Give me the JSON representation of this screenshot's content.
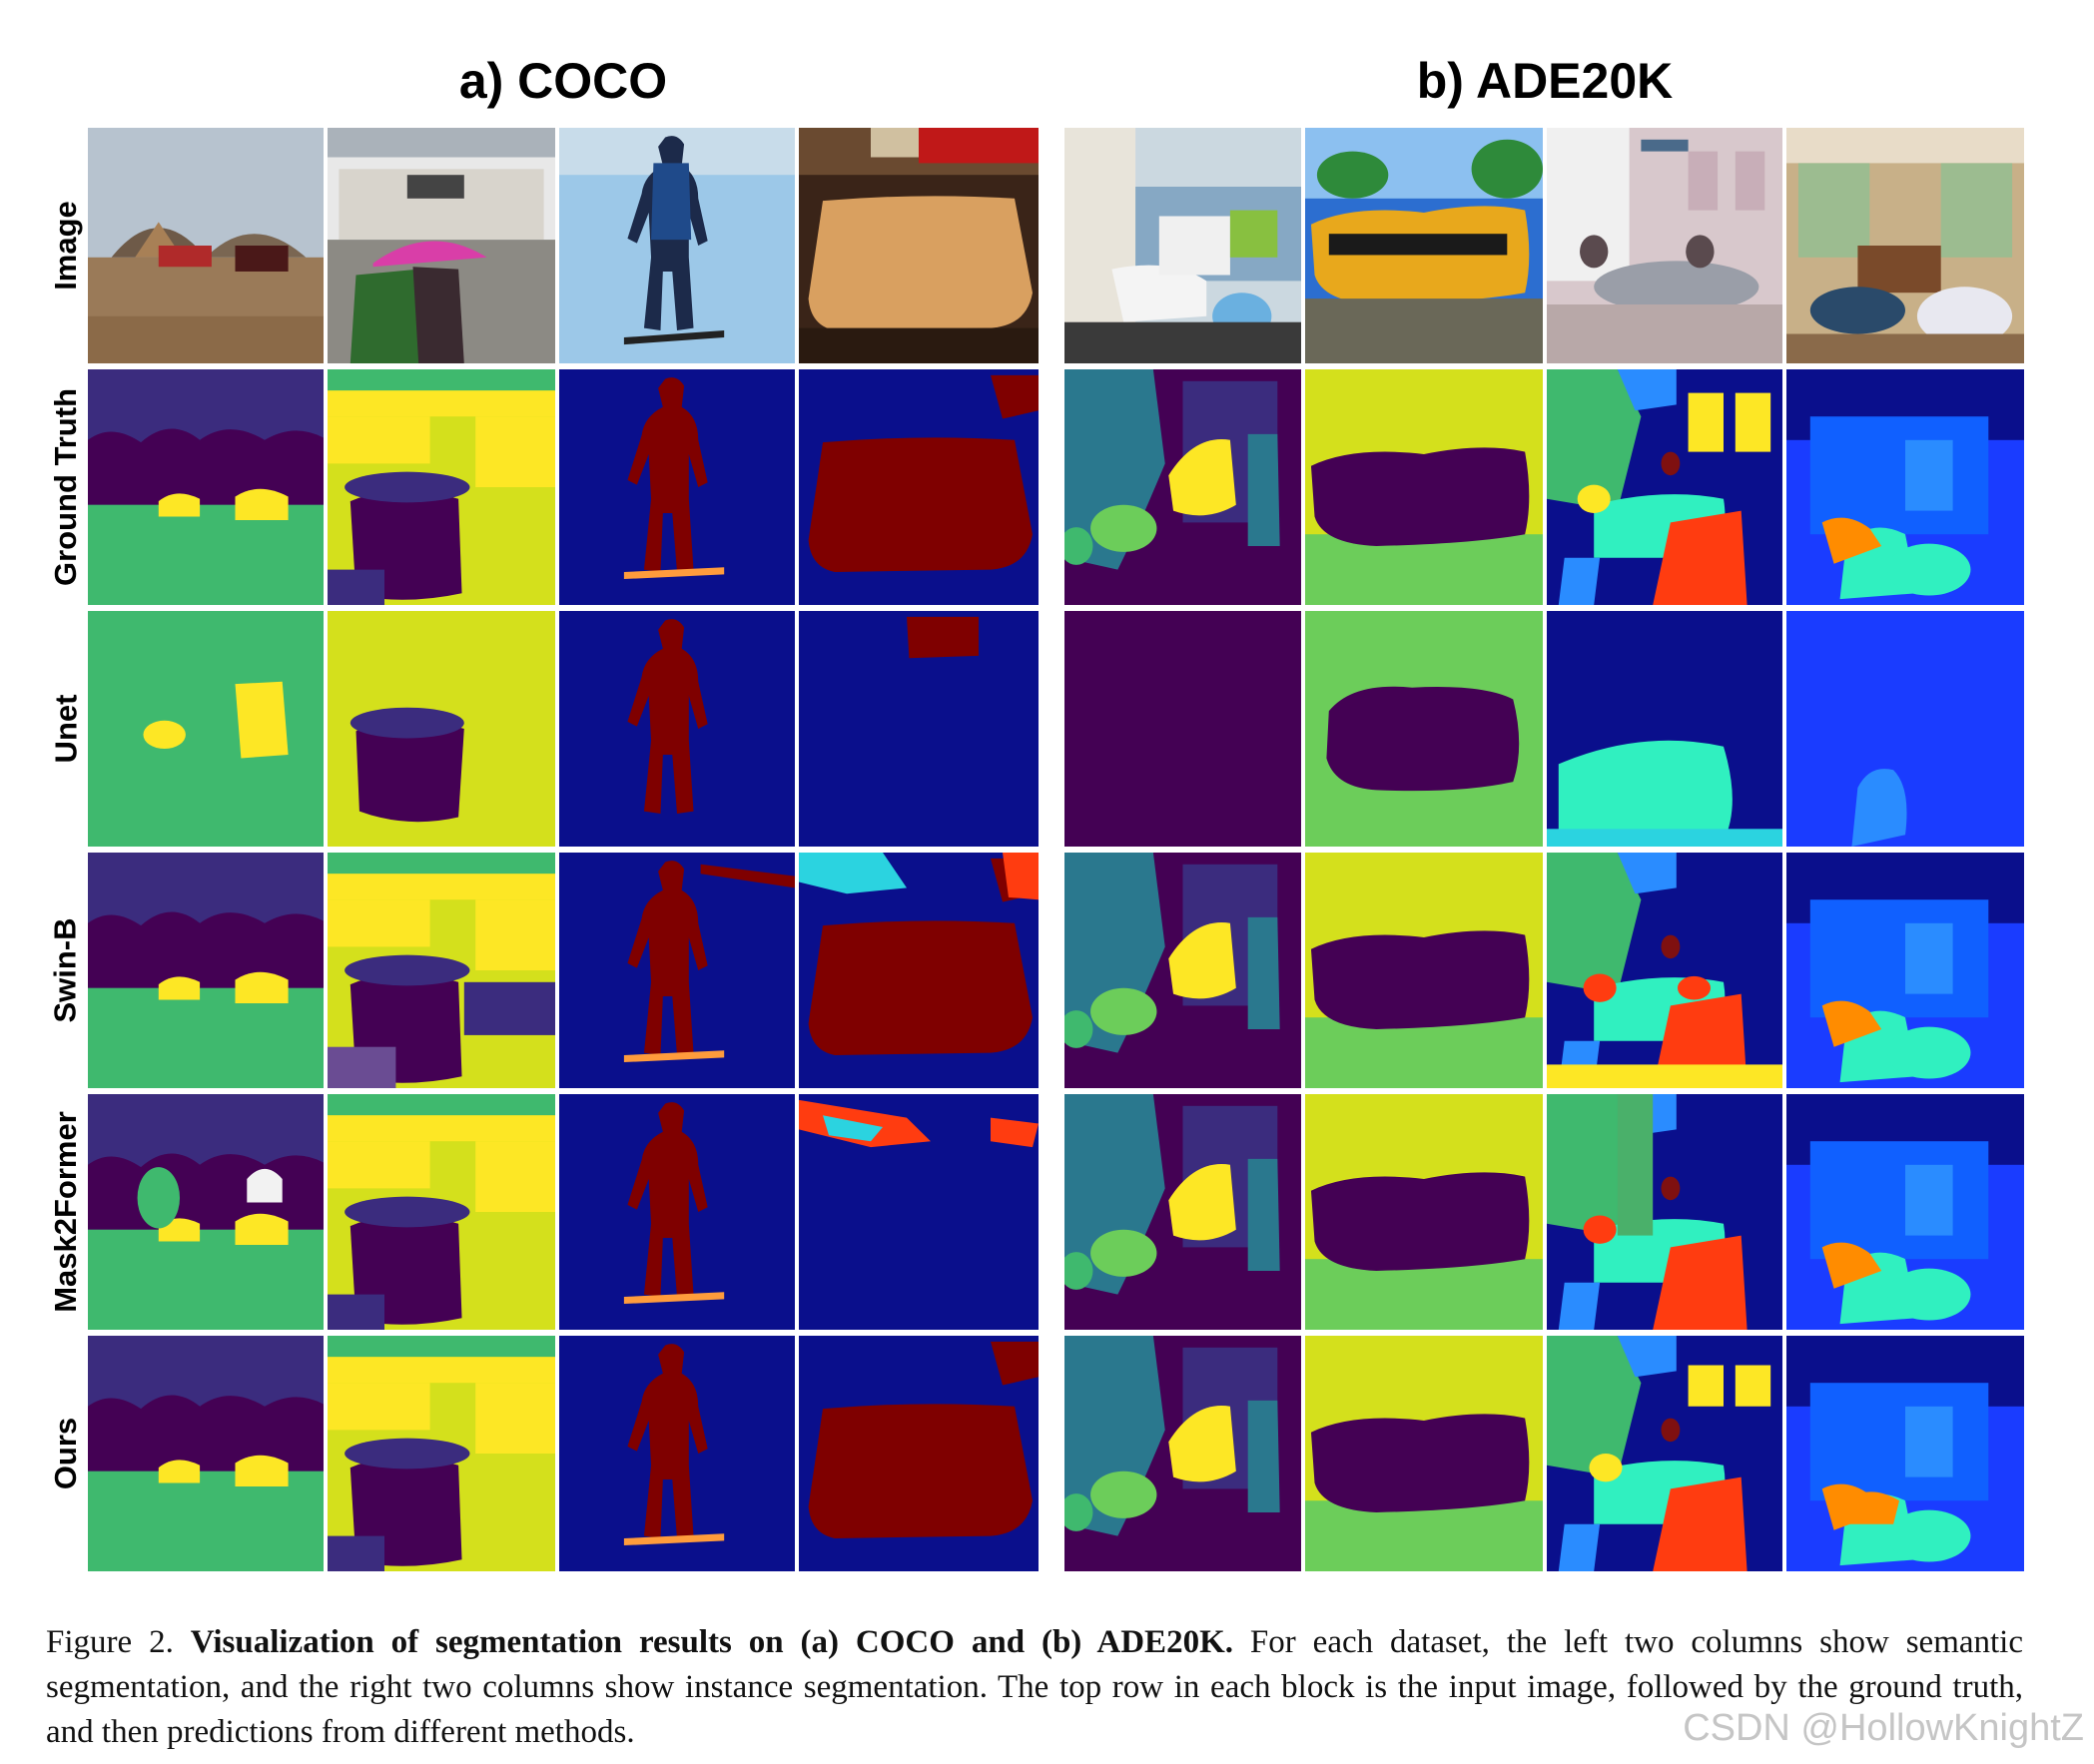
{
  "panels": {
    "coco_title": "a) COCO",
    "ade_title": "b) ADE20K"
  },
  "row_labels": [
    "Image",
    "Ground Truth",
    "Unet",
    "Swin-B",
    "Mask2Former",
    "Ours"
  ],
  "caption": {
    "prefix": "Figure 2. ",
    "bold": "Visualization of segmentation results on (a) COCO and (b) ADE20K.",
    "rest": " For each dataset, the left two columns show semantic segmentation, and the right two columns show instance segmentation. The top row in each block is the input image, followed by the ground truth, and then predictions from different methods."
  },
  "watermark": "CSDN @HollowKnightZ",
  "colors": {
    "navy": "#0a0f8c",
    "dark_red": "#7f0000",
    "viridis_purple": "#440154",
    "viridis_indigo": "#3b2c7e",
    "viridis_teal": "#2a788e",
    "viridis_green": "#3fb96e",
    "viridis_lime": "#d4e01c",
    "viridis_yellow": "#fde725"
  }
}
